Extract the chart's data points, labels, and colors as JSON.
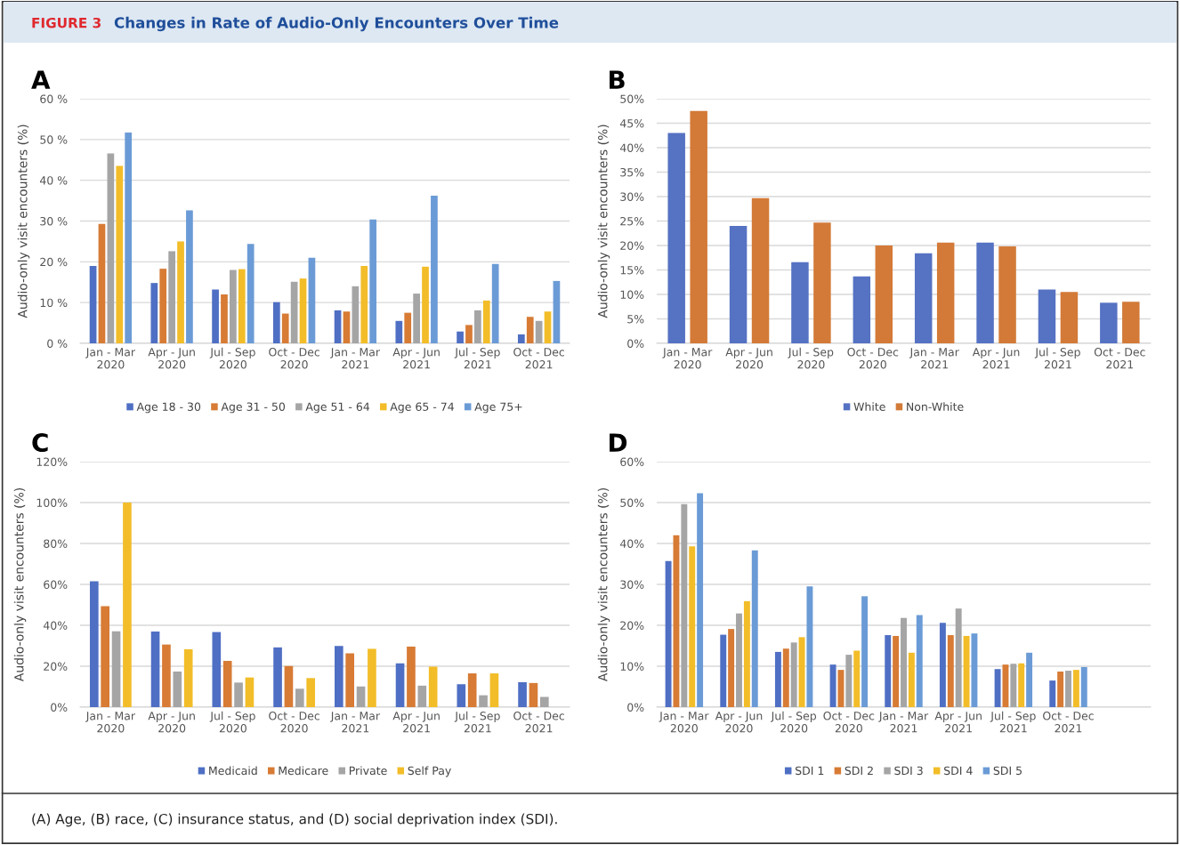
{
  "chart_data": [
    {
      "type": "bar",
      "title": "A",
      "ylabel": "Audio-only visit encounters (%)",
      "annotations": [
        "FIGURE 3",
        "Changes in Rate of Audio-Only Encounters Over Time",
        "(A) Age, (B) race, (C) insurance status, and (D) social deprivation index (SDI)."
      ],
      "categories": [
        "Jan - Mar\n2020",
        "Apr - Jun\n2020",
        "Jul - Sep\n2020",
        "Oct - Dec\n2020",
        "Jan - Mar\n2021",
        "Apr - Jun\n2021",
        "Jul - Sep\n2021",
        "Oct - Dec\n2021"
      ],
      "series": [
        {
          "name": "Age 18 - 30",
          "color": "#4f6fc4",
          "values": [
            19.0,
            14.8,
            13.2,
            10.1,
            8.1,
            5.5,
            2.9,
            2.2
          ]
        },
        {
          "name": "Age 31 - 50",
          "color": "#d77b35",
          "values": [
            29.3,
            18.3,
            12.0,
            7.3,
            7.8,
            7.5,
            4.5,
            6.5
          ]
        },
        {
          "name": "Age 51 - 64",
          "color": "#a5a5a5",
          "values": [
            46.6,
            22.6,
            18.0,
            15.1,
            14.0,
            12.2,
            8.1,
            5.5
          ]
        },
        {
          "name": "Age 65 - 74",
          "color": "#f2bd29",
          "values": [
            43.5,
            25.0,
            18.2,
            15.9,
            19.0,
            18.8,
            10.5,
            7.8
          ]
        },
        {
          "name": "Age 75+",
          "color": "#6b9bd6",
          "values": [
            51.7,
            32.6,
            24.4,
            21.0,
            30.4,
            36.2,
            19.5,
            15.3
          ]
        }
      ],
      "ylim": [
        0,
        60
      ],
      "yticks": [
        {
          "value": 0,
          "label": "0 %"
        },
        {
          "value": 10,
          "label": "10 %"
        },
        {
          "value": 20,
          "label": "20 %"
        },
        {
          "value": 30,
          "label": "30 %"
        },
        {
          "value": 40,
          "label": "40 %"
        },
        {
          "value": 50,
          "label": "50 %"
        },
        {
          "value": 60,
          "label": "60 %"
        }
      ],
      "grid": "y",
      "legend": "bottom"
    },
    {
      "type": "bar",
      "title": "B",
      "ylabel": "Audio-only visit encounters (%)",
      "categories": [
        "Jan - Mar\n2020",
        "Apr - Jun\n2020",
        "Jul - Sep\n2020",
        "Oct - Dec\n2020",
        "Jan - Mar\n2021",
        "Apr - Jun\n2021",
        "Jul - Sep\n2021",
        "Oct - Dec\n2021"
      ],
      "series": [
        {
          "name": "White",
          "color": "#5572c3",
          "values": [
            43.0,
            24.0,
            16.6,
            13.7,
            18.4,
            20.6,
            11.0,
            8.3
          ]
        },
        {
          "name": "Non-White",
          "color": "#d37a38",
          "values": [
            47.5,
            29.7,
            24.7,
            20.0,
            20.6,
            19.8,
            10.5,
            8.5
          ]
        }
      ],
      "ylim": [
        0,
        50
      ],
      "yticks": [
        {
          "value": 0,
          "label": "0%"
        },
        {
          "value": 5,
          "label": "5%"
        },
        {
          "value": 10,
          "label": "10%"
        },
        {
          "value": 15,
          "label": "15%"
        },
        {
          "value": 20,
          "label": "20%"
        },
        {
          "value": 25,
          "label": "25%"
        },
        {
          "value": 30,
          "label": "30%"
        },
        {
          "value": 35,
          "label": "35%"
        },
        {
          "value": 40,
          "label": "40%"
        },
        {
          "value": 45,
          "label": "45%"
        },
        {
          "value": 50,
          "label": "50%"
        }
      ],
      "grid": "y",
      "legend": "bottom"
    },
    {
      "type": "bar",
      "title": "C",
      "ylabel": "Audio-only visit encounters (%)",
      "categories": [
        "Jan - Mar\n2020",
        "Apr - Jun\n2020",
        "Jul - Sep\n2020",
        "Oct - Dec\n2020",
        "Jan - Mar\n2021",
        "Apr - Jun\n2021",
        "Jul - Sep\n2021",
        "Oct - Dec\n2021"
      ],
      "series": [
        {
          "name": "Medicaid",
          "color": "#4f6fc4",
          "values": [
            61.5,
            37.0,
            36.7,
            29.2,
            29.9,
            21.4,
            11.2,
            12.2
          ]
        },
        {
          "name": "Medicare",
          "color": "#d77b35",
          "values": [
            49.4,
            30.6,
            22.6,
            20.1,
            26.3,
            29.6,
            16.5,
            11.8
          ]
        },
        {
          "name": "Private",
          "color": "#a5a5a5",
          "values": [
            37.1,
            17.4,
            12.0,
            9.0,
            10.1,
            10.5,
            5.8,
            5.0
          ]
        },
        {
          "name": "Self Pay",
          "color": "#f2bd29",
          "values": [
            100,
            28.3,
            14.5,
            14.2,
            28.5,
            19.8,
            16.5,
            null
          ]
        }
      ],
      "ylim": [
        0,
        120
      ],
      "yticks": [
        {
          "value": 0,
          "label": "0%"
        },
        {
          "value": 20,
          "label": "20%"
        },
        {
          "value": 40,
          "label": "40%"
        },
        {
          "value": 60,
          "label": "60%"
        },
        {
          "value": 80,
          "label": "80%"
        },
        {
          "value": 100,
          "label": "100%"
        },
        {
          "value": 120,
          "label": "120%"
        }
      ],
      "grid": "y",
      "legend": "bottom"
    },
    {
      "type": "bar",
      "title": "D",
      "ylabel": "Audio-only visit encounters (%)",
      "categories": [
        "Jan - Mar\n2020",
        "Apr - Jun\n2020",
        "Jul - Sep\n2020",
        "Oct - Dec\n2020",
        "Jan - Mar\n2021",
        "Apr - Jun\n2021",
        "Jul - Sep\n2021",
        "Oct - Dec\n2021",
        null
      ],
      "series": [
        {
          "name": "SDI 1",
          "color": "#4f6fc4",
          "values": [
            35.7,
            17.7,
            13.5,
            10.4,
            17.6,
            20.6,
            9.3,
            6.5,
            null
          ]
        },
        {
          "name": "SDI 2",
          "color": "#d77b35",
          "values": [
            42.0,
            19.1,
            14.3,
            9.1,
            17.4,
            17.6,
            10.4,
            8.7,
            null
          ]
        },
        {
          "name": "SDI 3",
          "color": "#a5a5a5",
          "values": [
            49.6,
            22.9,
            15.8,
            12.8,
            21.8,
            24.1,
            10.6,
            8.9,
            null
          ]
        },
        {
          "name": "SDI 4",
          "color": "#f2bd29",
          "values": [
            39.3,
            25.9,
            17.1,
            13.8,
            13.3,
            17.4,
            10.7,
            9.1,
            null
          ]
        },
        {
          "name": "SDI 5",
          "color": "#6b9bd6",
          "values": [
            52.3,
            38.3,
            29.5,
            27.1,
            22.5,
            18.0,
            13.3,
            9.8,
            null
          ]
        }
      ],
      "ylim": [
        0,
        60
      ],
      "yticks": [
        {
          "value": 0,
          "label": "0%"
        },
        {
          "value": 10,
          "label": "10%"
        },
        {
          "value": 20,
          "label": "20%"
        },
        {
          "value": 30,
          "label": "30%"
        },
        {
          "value": 40,
          "label": "40%"
        },
        {
          "value": 50,
          "label": "50%"
        },
        {
          "value": 60,
          "label": "60%"
        }
      ],
      "grid": "y",
      "legend": "bottom"
    }
  ]
}
